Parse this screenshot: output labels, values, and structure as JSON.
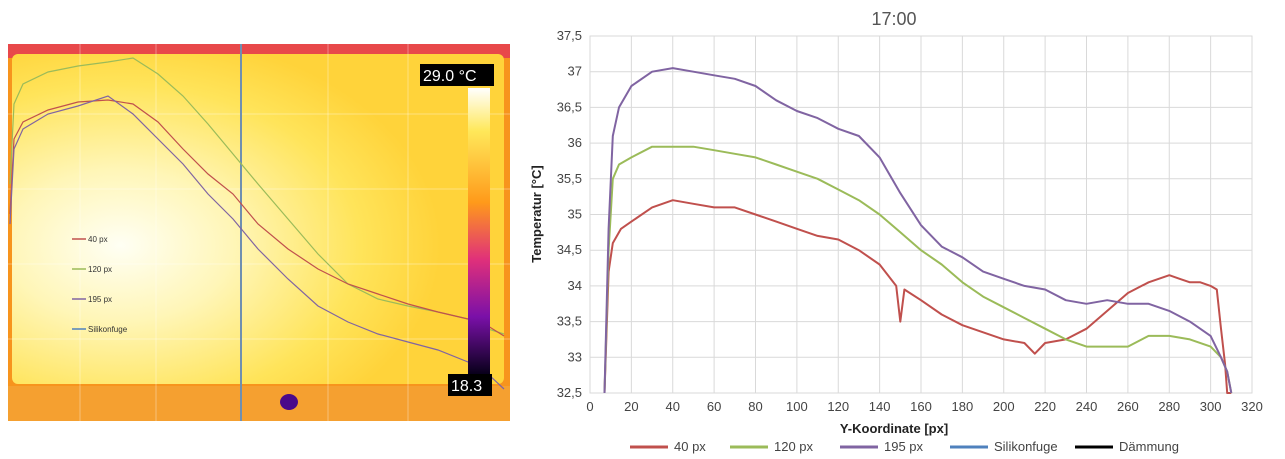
{
  "thermal": {
    "scale_max": "29.0 °C",
    "scale_min": "18.3",
    "legend": [
      "40 px",
      "120 px",
      "195 px",
      "Silikonfuge"
    ]
  },
  "chart_data": {
    "type": "line",
    "title": "17:00",
    "xlabel": "Y-Koordinate [px]",
    "ylabel": "Temperatur [°C]",
    "xlim": [
      0,
      320
    ],
    "ylim": [
      32.5,
      37.5
    ],
    "xticks": [
      "0",
      "20",
      "40",
      "60",
      "80",
      "100",
      "120",
      "140",
      "160",
      "180",
      "200",
      "220",
      "240",
      "260",
      "280",
      "300",
      "320"
    ],
    "yticks": [
      "32,5",
      "33",
      "33,5",
      "34",
      "34,5",
      "35",
      "35,5",
      "36",
      "36,5",
      "37",
      "37,5"
    ],
    "grid": true,
    "legend_position": "bottom",
    "series": [
      {
        "name": "40 px",
        "color": "#c0504d",
        "x": [
          7,
          9,
          11,
          15,
          20,
          30,
          40,
          50,
          60,
          70,
          80,
          90,
          100,
          110,
          120,
          130,
          140,
          148,
          150,
          152,
          160,
          170,
          180,
          190,
          200,
          210,
          215,
          220,
          230,
          240,
          250,
          260,
          270,
          280,
          285,
          290,
          295,
          300,
          303,
          305,
          307,
          308,
          310
        ],
        "y": [
          32.5,
          34.2,
          34.6,
          34.8,
          34.9,
          35.1,
          35.2,
          35.15,
          35.1,
          35.1,
          35.0,
          34.9,
          34.8,
          34.7,
          34.65,
          34.5,
          34.3,
          34.0,
          33.5,
          33.95,
          33.8,
          33.6,
          33.45,
          33.35,
          33.25,
          33.2,
          33.05,
          33.2,
          33.25,
          33.4,
          33.65,
          33.9,
          34.05,
          34.15,
          34.1,
          34.05,
          34.05,
          34.0,
          33.95,
          33.4,
          32.9,
          32.5,
          32.5
        ]
      },
      {
        "name": "120 px",
        "color": "#9bbb59",
        "x": [
          7,
          9,
          11,
          14,
          20,
          30,
          40,
          50,
          60,
          70,
          80,
          90,
          100,
          110,
          120,
          130,
          140,
          150,
          160,
          170,
          180,
          190,
          200,
          210,
          220,
          230,
          240,
          250,
          260,
          270,
          280,
          290,
          300,
          305,
          308,
          310
        ],
        "y": [
          32.5,
          34.5,
          35.5,
          35.7,
          35.8,
          35.95,
          35.95,
          35.95,
          35.9,
          35.85,
          35.8,
          35.7,
          35.6,
          35.5,
          35.35,
          35.2,
          35.0,
          34.75,
          34.5,
          34.3,
          34.05,
          33.85,
          33.7,
          33.55,
          33.4,
          33.25,
          33.15,
          33.15,
          33.15,
          33.3,
          33.3,
          33.25,
          33.15,
          33.0,
          32.8,
          32.5
        ]
      },
      {
        "name": "195 px",
        "color": "#8064a2",
        "x": [
          7,
          9,
          11,
          14,
          20,
          30,
          40,
          50,
          60,
          70,
          80,
          90,
          100,
          110,
          120,
          130,
          140,
          150,
          160,
          170,
          180,
          190,
          200,
          210,
          220,
          230,
          240,
          250,
          260,
          270,
          280,
          290,
          300,
          305,
          308,
          310
        ],
        "y": [
          32.5,
          34.8,
          36.1,
          36.5,
          36.8,
          37.0,
          37.05,
          37.0,
          36.95,
          36.9,
          36.8,
          36.6,
          36.45,
          36.35,
          36.2,
          36.1,
          35.8,
          35.3,
          34.85,
          34.55,
          34.4,
          34.2,
          34.1,
          34.0,
          33.95,
          33.8,
          33.75,
          33.8,
          33.75,
          33.75,
          33.65,
          33.5,
          33.3,
          33.0,
          32.8,
          32.5
        ]
      },
      {
        "name": "Silikonfuge",
        "color": "#4f81bd",
        "x": [],
        "y": []
      },
      {
        "name": "Dämmung",
        "color": "#000000",
        "x": [],
        "y": []
      }
    ]
  }
}
